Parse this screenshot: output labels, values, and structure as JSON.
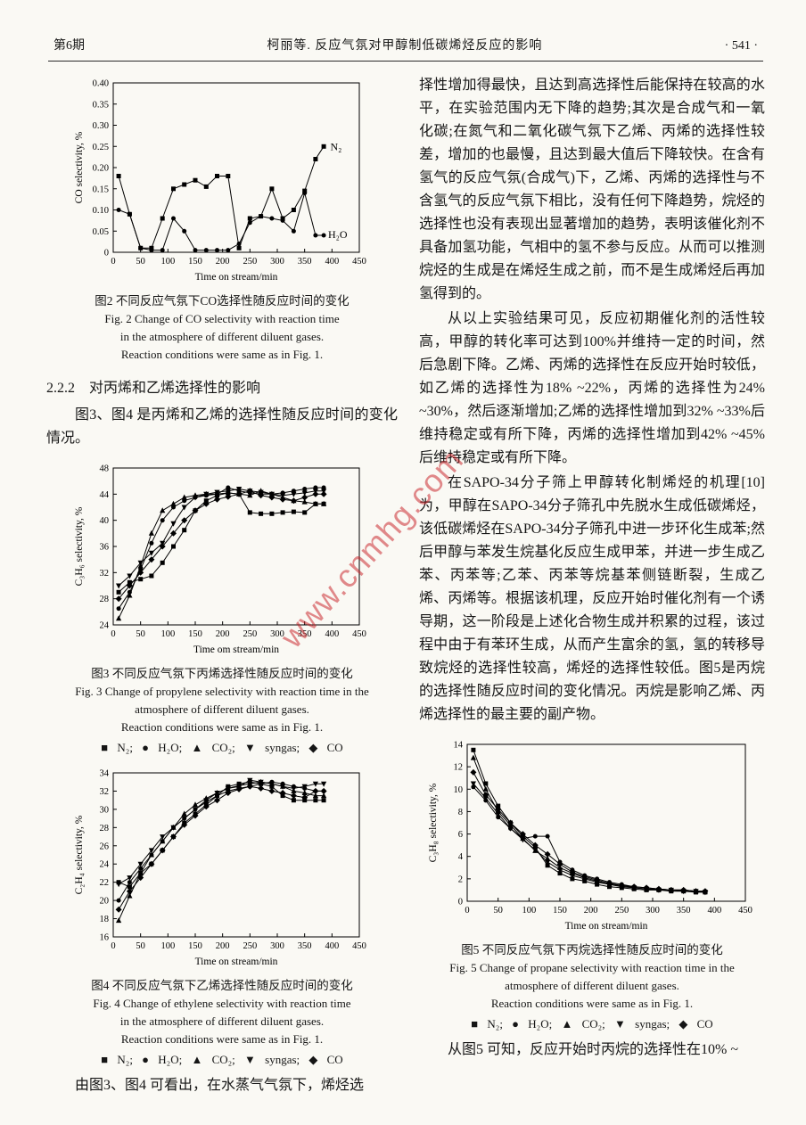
{
  "page": {
    "header": {
      "issue": "第6期",
      "title": "柯丽等. 反应气氛对甲醇制低碳烯烃反应的影响",
      "page_no": "· 541 ·"
    },
    "watermark": "www.cnmhg.com"
  },
  "left": {
    "fig2": {
      "caption_cn": "图2  不同反应气氛下CO选择性随反应时间的变化",
      "caption_en1": "Fig. 2   Change of CO selectivity with reaction time",
      "caption_en2": "in the atmosphere of different diluent gases.",
      "caption_en3": "Reaction conditions were same as in Fig. 1.",
      "chart_data": {
        "type": "line",
        "xlabel": "Time on stream/min",
        "ylabel": "CO selectivity, %",
        "xlim": [
          0,
          450
        ],
        "ylim": [
          0,
          0.4
        ],
        "xticks": [
          "0",
          "50",
          "100",
          "150",
          "200",
          "250",
          "300",
          "350",
          "400",
          "450"
        ],
        "yticks": [
          "0",
          "0.05",
          "0.10",
          "0.15",
          "0.20",
          "0.25",
          "0.30",
          "0.35",
          "0.40"
        ],
        "x": [
          10,
          30,
          50,
          70,
          90,
          110,
          130,
          150,
          170,
          190,
          210,
          230,
          250,
          270,
          290,
          310,
          330,
          350,
          370,
          385
        ],
        "series": [
          {
            "name": "N2",
            "marker": "square",
            "y": [
              0.18,
              0.09,
              0.01,
              0.01,
              0.08,
              0.15,
              0.16,
              0.17,
              0.155,
              0.18,
              0.18,
              0.01,
              0.08,
              0.085,
              0.15,
              0.08,
              0.1,
              0.145,
              0.22,
              0.25
            ]
          },
          {
            "name": "H2O",
            "marker": "circle",
            "y": [
              0.1,
              0.09,
              0.01,
              0.005,
              0.005,
              0.08,
              0.05,
              0.005,
              0.005,
              0.005,
              0.005,
              0.02,
              0.07,
              0.085,
              0.08,
              0.075,
              0.05,
              0.14,
              0.04,
              0.04
            ]
          }
        ],
        "annotations": [
          {
            "text": "N₂",
            "x": 397,
            "y": 0.25
          },
          {
            "text": "H₂O",
            "x": 393,
            "y": 0.042
          }
        ]
      }
    },
    "section": {
      "heading": "2.2.2　对丙烯和乙烯选择性的影响",
      "para": "图3、图4 是丙烯和乙烯的选择性随反应时间的变化情况。"
    },
    "fig3": {
      "caption_cn": "图3  不同反应气氛下丙烯选择性随反应时间的变化",
      "caption_en1": "Fig. 3   Change of propylene selectivity with reaction time in the",
      "caption_en2": "atmosphere of different diluent gases.",
      "caption_en3": "Reaction conditions were same as in Fig. 1.",
      "legend": "■ N₂;  ● H₂O;  ▲ CO₂;  ▼ syngas;  ◆ CO",
      "chart_data": {
        "type": "line",
        "xlabel": "Time om stream/min",
        "ylabel": "C₃H₆ selectivity, %",
        "xlim": [
          0,
          450
        ],
        "ylim": [
          24,
          48
        ],
        "xticks": [
          "0",
          "50",
          "100",
          "150",
          "200",
          "250",
          "300",
          "350",
          "400",
          "450"
        ],
        "yticks": [
          "24",
          "28",
          "32",
          "36",
          "40",
          "44",
          "48"
        ],
        "x": [
          10,
          30,
          50,
          70,
          90,
          110,
          130,
          150,
          170,
          190,
          210,
          230,
          250,
          270,
          290,
          310,
          330,
          350,
          370,
          385
        ],
        "series": [
          {
            "name": "N2",
            "marker": "square",
            "y": [
              29,
              30.5,
              31,
              31.5,
              33.5,
              36,
              38.5,
              41.5,
              43,
              43.8,
              44.2,
              44,
              41.2,
              41,
              41,
              41.2,
              41.3,
              41.2,
              42.5,
              42.5
            ]
          },
          {
            "name": "H2O",
            "marker": "circle",
            "y": [
              26.5,
              29,
              32.5,
              36.5,
              40,
              42,
              43,
              43.5,
              43.8,
              44,
              45,
              44.5,
              44.2,
              44,
              44,
              44.2,
              44.5,
              44.8,
              45,
              45
            ]
          },
          {
            "name": "CO2",
            "marker": "triangle-up",
            "y": [
              25,
              28.5,
              33,
              38,
              41.5,
              42.5,
              43.5,
              43.8,
              44,
              44,
              44.2,
              44,
              43.8,
              44.5,
              44,
              43.5,
              43,
              42.8,
              42.5,
              42.5
            ]
          },
          {
            "name": "syngas",
            "marker": "triangle-down",
            "y": [
              30,
              31.5,
              33.5,
              35,
              36.5,
              39.5,
              42,
              43.5,
              44,
              44.3,
              44.5,
              44.8,
              44.5,
              44.3,
              44,
              43.8,
              44,
              44.2,
              44.5,
              44.5
            ]
          },
          {
            "name": "CO",
            "marker": "diamond",
            "y": [
              28,
              30,
              32,
              34,
              36,
              38,
              40,
              41.5,
              42.5,
              43.2,
              43.6,
              44,
              44.5,
              43.8,
              43.5,
              43.2,
              43,
              43.5,
              44,
              44
            ]
          }
        ]
      }
    },
    "fig4": {
      "caption_cn": "图4  不同反应气氛下乙烯选择性随反应时间的变化",
      "caption_en1": "Fig. 4   Change of ethylene selectivity with reaction time",
      "caption_en2": "in the atmosphere of different diluent gases.",
      "caption_en3": "Reaction conditions were same as in Fig. 1.",
      "legend": "■ N₂;  ● H₂O;  ▲ CO₂;  ▼ syngas;  ◆ CO",
      "chart_data": {
        "type": "line",
        "xlabel": "Time on stream/min",
        "ylabel": "C₂H₄ selectivity, %",
        "xlim": [
          0,
          450
        ],
        "ylim": [
          16,
          34
        ],
        "xticks": [
          "0",
          "50",
          "100",
          "150",
          "200",
          "250",
          "300",
          "350",
          "400",
          "450"
        ],
        "yticks": [
          "16",
          "18",
          "20",
          "22",
          "24",
          "26",
          "28",
          "30",
          "32",
          "34"
        ],
        "x": [
          10,
          30,
          50,
          70,
          90,
          110,
          130,
          150,
          170,
          190,
          210,
          230,
          250,
          270,
          290,
          310,
          330,
          350,
          370,
          385
        ],
        "series": [
          {
            "name": "N2",
            "marker": "square",
            "y": [
              22,
              21.5,
              23,
              24,
              25.5,
              27,
              28.5,
              29.5,
              30.5,
              31.5,
              32.5,
              32.8,
              33,
              32.8,
              32.5,
              31.5,
              31,
              31,
              31,
              31
            ]
          },
          {
            "name": "H2O",
            "marker": "circle",
            "y": [
              20,
              22,
              23.5,
              25,
              26.5,
              28,
              29,
              30,
              30.8,
              31.5,
              32,
              32.3,
              32.5,
              32.8,
              33,
              32.8,
              32.5,
              32.3,
              32,
              32
            ]
          },
          {
            "name": "CO2",
            "marker": "triangle-up",
            "y": [
              17.8,
              20.5,
              23,
              25,
              26.5,
              28,
              29.5,
              30.5,
              31.2,
              31.8,
              32.3,
              32.6,
              32.8,
              33,
              32.8,
              32.5,
              32,
              31.8,
              31.5,
              31.5
            ]
          },
          {
            "name": "syngas",
            "marker": "triangle-down",
            "y": [
              21.8,
              22.5,
              24,
              25.5,
              27,
              28,
              29,
              30,
              31,
              31.8,
              32.3,
              32.5,
              33.2,
              33,
              32.8,
              32.5,
              32.3,
              32.5,
              32.8,
              32.8
            ]
          },
          {
            "name": "CO",
            "marker": "diamond",
            "y": [
              19,
              21,
              22.5,
              24,
              25.5,
              27,
              28.3,
              29.3,
              30.3,
              31,
              31.8,
              32.2,
              32.5,
              32.3,
              32,
              31.8,
              31.5,
              31.3,
              32,
              32
            ]
          }
        ]
      }
    },
    "closing": "由图3、图4 可看出，在水蒸气气氛下，烯烃选"
  },
  "right": {
    "para1": "择性增加得最快，且达到高选择性后能保持在较高的水平，在实验范围内无下降的趋势;其次是合成气和一氧化碳;在氮气和二氧化碳气氛下乙烯、丙烯的选择性较差，增加的也最慢，且达到最大值后下降较快。在含有氢气的反应气氛(合成气)下，乙烯、丙烯的选择性与不含氢气的反应气氛下相比，没有任何下降趋势，烷烃的选择性也没有表现出显著增加的趋势，表明该催化剂不具备加氢功能，气相中的氢不参与反应。从而可以推测烷烃的生成是在烯烃生成之前，而不是生成烯烃后再加氢得到的。",
    "para2": "从以上实验结果可见，反应初期催化剂的活性较高，甲醇的转化率可达到100%并维持一定的时间，然后急剧下降。乙烯、丙烯的选择性在反应开始时较低，如乙烯的选择性为18% ~22%，丙烯的选择性为24% ~30%，然后逐渐增加;乙烯的选择性增加到32% ~33%后维持稳定或有所下降，丙烯的选择性增加到42% ~45%后维持稳定或有所下降。",
    "para3": "在SAPO-34分子筛上甲醇转化制烯烃的机理[10]为，甲醇在SAPO-34分子筛孔中先脱水生成低碳烯烃，该低碳烯烃在SAPO-34分子筛孔中进一步环化生成苯;然后甲醇与苯发生烷基化反应生成甲苯，并进一步生成乙苯、丙苯等;乙苯、丙苯等烷基苯侧链断裂，生成乙烯、丙烯等。根据该机理，反应开始时催化剂有一个诱导期，这一阶段是上述化合物生成并积累的过程，该过程中由于有苯环生成，从而产生富余的氢，氢的转移导致烷烃的选择性较高，烯烃的选择性较低。图5是丙烷的选择性随反应时间的变化情况。丙烷是影响乙烯、丙烯选择性的最主要的副产物。",
    "fig5": {
      "caption_cn": "图5  不同反应气氛下丙烷选择性随反应时间的变化",
      "caption_en1": "Fig. 5   Change of propane selectivity with reaction time in the",
      "caption_en2": "atmosphere of different diluent gases.",
      "caption_en3": "Reaction conditions were same as in Fig. 1.",
      "legend": "■ N₂;  ● H₂O;  ▲ CO₂;  ▼ syngas;  ◆ CO",
      "chart_data": {
        "type": "line",
        "xlabel": "Time on stream/min",
        "ylabel": "C₃H₈ selectivity, %",
        "xlim": [
          0,
          450
        ],
        "ylim": [
          0,
          14
        ],
        "xticks": [
          "0",
          "50",
          "100",
          "150",
          "200",
          "250",
          "300",
          "350",
          "400",
          "450"
        ],
        "yticks": [
          "0",
          "2",
          "4",
          "6",
          "8",
          "10",
          "12",
          "14"
        ],
        "x": [
          10,
          30,
          50,
          70,
          90,
          110,
          130,
          150,
          170,
          190,
          210,
          230,
          250,
          270,
          290,
          310,
          330,
          350,
          370,
          385
        ],
        "series": [
          {
            "name": "N2",
            "marker": "square",
            "y": [
              13.5,
              10.5,
              8.5,
              7,
              5.8,
              4.8,
              3.2,
              2.5,
              2,
              1.8,
              1.5,
              1.3,
              1.2,
              1.1,
              1,
              1,
              0.9,
              0.9,
              0.8,
              0.8
            ]
          },
          {
            "name": "H2O",
            "marker": "circle",
            "y": [
              10.2,
              9,
              7.5,
              6.5,
              5.6,
              5.8,
              5.8,
              3.5,
              2.8,
              2.3,
              2,
              1.7,
              1.5,
              1.3,
              1.2,
              1.1,
              1,
              1,
              0.9,
              0.9
            ]
          },
          {
            "name": "CO2",
            "marker": "triangle-up",
            "y": [
              12.8,
              10,
              8,
              6.8,
              5.6,
              4.5,
              3.8,
              3,
              2.5,
              2.1,
              1.8,
              1.5,
              1.4,
              1.2,
              1.1,
              1.1,
              1,
              1,
              0.9,
              0.9
            ]
          },
          {
            "name": "syngas",
            "marker": "triangle-down",
            "y": [
              10.5,
              9.2,
              7.8,
              6.5,
              5.5,
              4.6,
              3.5,
              2.8,
              2.3,
              2,
              1.7,
              1.5,
              1.3,
              1.2,
              1.1,
              1,
              1,
              0.9,
              0.9,
              0.8
            ]
          },
          {
            "name": "CO",
            "marker": "diamond",
            "y": [
              11.5,
              9.5,
              8.2,
              7,
              6,
              5,
              4.2,
              3.3,
              2.6,
              2.2,
              1.9,
              1.6,
              1.4,
              1.3,
              1.2,
              1.1,
              1,
              1,
              0.9,
              0.9
            ]
          }
        ]
      }
    },
    "closing": "从图5 可知，反应开始时丙烷的选择性在10% ~"
  }
}
